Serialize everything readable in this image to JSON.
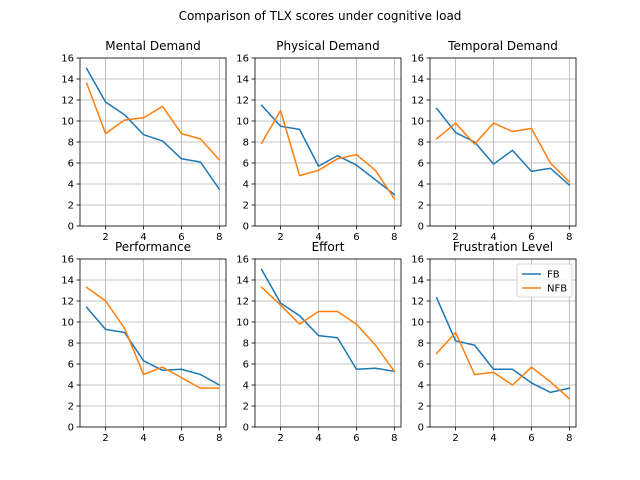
{
  "figure": {
    "title": "Comparison of TLX scores under cognitive load"
  },
  "colors": {
    "FB": "#1f77b4",
    "NFB": "#ff7f0e",
    "grid": "#b0b0b0"
  },
  "chart_data": [
    {
      "type": "line",
      "title": "Mental Demand",
      "x": [
        1,
        2,
        3,
        4,
        5,
        6,
        7,
        8
      ],
      "xticks": [
        2,
        4,
        6,
        8
      ],
      "yticks": [
        0,
        2,
        4,
        6,
        8,
        10,
        12,
        14,
        16
      ],
      "xlim": [
        0.65,
        8.35
      ],
      "ylim": [
        0,
        16
      ],
      "grid": true,
      "series": [
        {
          "name": "FB",
          "values": [
            15.0,
            11.8,
            10.6,
            8.7,
            8.1,
            6.4,
            6.1,
            3.5
          ]
        },
        {
          "name": "NFB",
          "values": [
            13.6,
            8.8,
            10.1,
            10.3,
            11.4,
            8.8,
            8.3,
            6.3
          ]
        }
      ]
    },
    {
      "type": "line",
      "title": "Physical Demand",
      "x": [
        1,
        2,
        3,
        4,
        5,
        6,
        7,
        8
      ],
      "xticks": [
        2,
        4,
        6,
        8
      ],
      "yticks": [
        0,
        2,
        4,
        6,
        8,
        10,
        12,
        14,
        16
      ],
      "xlim": [
        0.65,
        8.35
      ],
      "ylim": [
        0,
        16
      ],
      "grid": true,
      "series": [
        {
          "name": "FB",
          "values": [
            11.5,
            9.5,
            9.2,
            5.7,
            6.7,
            5.8,
            4.4,
            3.0
          ]
        },
        {
          "name": "NFB",
          "values": [
            7.9,
            11.0,
            4.8,
            5.3,
            6.4,
            6.8,
            5.3,
            2.6
          ]
        }
      ]
    },
    {
      "type": "line",
      "title": "Temporal Demand",
      "x": [
        1,
        2,
        3,
        4,
        5,
        6,
        7,
        8
      ],
      "xticks": [
        2,
        4,
        6,
        8
      ],
      "yticks": [
        0,
        2,
        4,
        6,
        8,
        10,
        12,
        14,
        16
      ],
      "xlim": [
        0.65,
        8.35
      ],
      "ylim": [
        0,
        16
      ],
      "grid": true,
      "series": [
        {
          "name": "FB",
          "values": [
            11.2,
            8.9,
            8.0,
            5.9,
            7.2,
            5.2,
            5.5,
            3.9
          ]
        },
        {
          "name": "NFB",
          "values": [
            8.3,
            9.8,
            7.8,
            9.8,
            9.0,
            9.3,
            6.0,
            4.2
          ]
        }
      ]
    },
    {
      "type": "line",
      "title": "Performance",
      "x": [
        1,
        2,
        3,
        4,
        5,
        6,
        7,
        8
      ],
      "xticks": [
        2,
        4,
        6,
        8
      ],
      "yticks": [
        0,
        2,
        4,
        6,
        8,
        10,
        12,
        14,
        16
      ],
      "xlim": [
        0.65,
        8.35
      ],
      "ylim": [
        0,
        16
      ],
      "grid": true,
      "series": [
        {
          "name": "FB",
          "values": [
            11.4,
            9.3,
            9.0,
            6.3,
            5.4,
            5.5,
            5.0,
            4.0
          ]
        },
        {
          "name": "NFB",
          "values": [
            13.3,
            12.0,
            9.4,
            5.0,
            5.7,
            4.7,
            3.7,
            3.7
          ]
        }
      ]
    },
    {
      "type": "line",
      "title": "Effort",
      "x": [
        1,
        2,
        3,
        4,
        5,
        6,
        7,
        8
      ],
      "xticks": [
        2,
        4,
        6,
        8
      ],
      "yticks": [
        0,
        2,
        4,
        6,
        8,
        10,
        12,
        14,
        16
      ],
      "xlim": [
        0.65,
        8.35
      ],
      "ylim": [
        0,
        16
      ],
      "grid": true,
      "series": [
        {
          "name": "FB",
          "values": [
            15.0,
            11.8,
            10.6,
            8.7,
            8.5,
            5.5,
            5.6,
            5.3
          ]
        },
        {
          "name": "NFB",
          "values": [
            13.3,
            11.6,
            9.8,
            11.0,
            11.0,
            9.8,
            7.8,
            5.3
          ]
        }
      ]
    },
    {
      "type": "line",
      "title": "Frustration Level",
      "x": [
        1,
        2,
        3,
        4,
        5,
        6,
        7,
        8
      ],
      "xticks": [
        2,
        4,
        6,
        8
      ],
      "yticks": [
        0,
        2,
        4,
        6,
        8,
        10,
        12,
        14,
        16
      ],
      "xlim": [
        0.65,
        8.35
      ],
      "ylim": [
        0,
        16
      ],
      "grid": true,
      "legend": "upper right",
      "series": [
        {
          "name": "FB",
          "values": [
            12.3,
            8.2,
            7.8,
            5.5,
            5.5,
            4.2,
            3.3,
            3.7
          ]
        },
        {
          "name": "NFB",
          "values": [
            7.0,
            9.0,
            5.0,
            5.2,
            4.0,
            5.7,
            4.3,
            2.7
          ]
        }
      ]
    }
  ]
}
